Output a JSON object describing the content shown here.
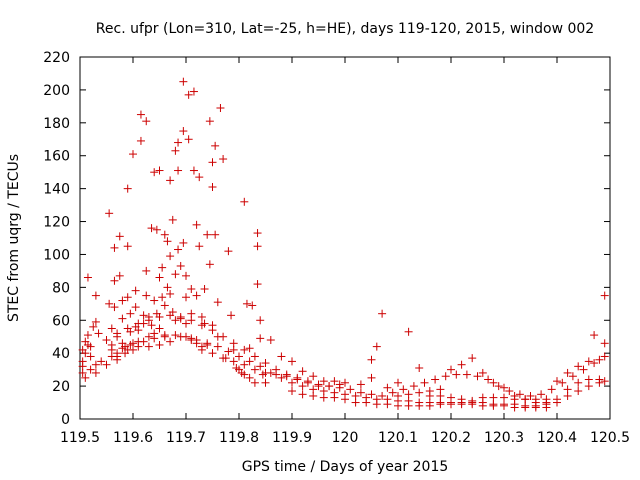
{
  "chart_data": {
    "type": "scatter",
    "title": "Rec. ufpr (Lon=310, Lat=-25, h=HE), days 119-120, 2015, window 002",
    "xlabel": "GPS time / Days of year 2015",
    "ylabel": "STEC from uqrg / TECUs",
    "xlim": [
      119.5,
      120.5
    ],
    "ylim": [
      0,
      220
    ],
    "x_ticks": [
      "119.5",
      "119.6",
      "119.7",
      "119.8",
      "119.9",
      "120",
      "120.1",
      "120.2",
      "120.3",
      "120.4",
      "120.5"
    ],
    "y_ticks": [
      "0",
      "20",
      "40",
      "60",
      "80",
      "100",
      "120",
      "140",
      "160",
      "180",
      "200",
      "220"
    ],
    "grid": false,
    "marker_color": "#cc0000",
    "marker": "plus",
    "points": [
      [
        119.505,
        42
      ],
      [
        119.505,
        35
      ],
      [
        119.505,
        28
      ],
      [
        119.51,
        40
      ],
      [
        119.51,
        47
      ],
      [
        119.515,
        86
      ],
      [
        119.515,
        45
      ],
      [
        119.515,
        51
      ],
      [
        119.52,
        30
      ],
      [
        119.52,
        38
      ],
      [
        119.525,
        56
      ],
      [
        119.53,
        75
      ],
      [
        119.53,
        33
      ],
      [
        119.53,
        59
      ],
      [
        119.535,
        52
      ],
      [
        119.555,
        125
      ],
      [
        119.555,
        70
      ],
      [
        119.56,
        55
      ],
      [
        119.56,
        45
      ],
      [
        119.56,
        38
      ],
      [
        119.565,
        104
      ],
      [
        119.565,
        84
      ],
      [
        119.565,
        68
      ],
      [
        119.57,
        52
      ],
      [
        119.57,
        40
      ],
      [
        119.57,
        36
      ],
      [
        119.575,
        111
      ],
      [
        119.575,
        87
      ],
      [
        119.58,
        72
      ],
      [
        119.58,
        61
      ],
      [
        119.58,
        46
      ],
      [
        119.585,
        44
      ],
      [
        119.585,
        40
      ],
      [
        119.59,
        140
      ],
      [
        119.59,
        105
      ],
      [
        119.59,
        74
      ],
      [
        119.595,
        64
      ],
      [
        119.595,
        53
      ],
      [
        119.595,
        45
      ],
      [
        119.6,
        161
      ],
      [
        119.6,
        42
      ],
      [
        119.605,
        78
      ],
      [
        119.605,
        68
      ],
      [
        119.605,
        56
      ],
      [
        119.61,
        54
      ],
      [
        119.61,
        47
      ],
      [
        119.615,
        185
      ],
      [
        119.615,
        169
      ],
      [
        119.62,
        63
      ],
      [
        119.62,
        58
      ],
      [
        119.625,
        181
      ],
      [
        119.625,
        90
      ],
      [
        119.625,
        75
      ],
      [
        119.63,
        62
      ],
      [
        119.63,
        50
      ],
      [
        119.635,
        116
      ],
      [
        119.635,
        57
      ],
      [
        119.64,
        150
      ],
      [
        119.64,
        72
      ],
      [
        119.64,
        52
      ],
      [
        119.645,
        115
      ],
      [
        119.645,
        64
      ],
      [
        119.65,
        151
      ],
      [
        119.65,
        86
      ],
      [
        119.65,
        55
      ],
      [
        119.655,
        92
      ],
      [
        119.655,
        74
      ],
      [
        119.66,
        112
      ],
      [
        119.66,
        69
      ],
      [
        119.66,
        51
      ],
      [
        119.665,
        108
      ],
      [
        119.665,
        80
      ],
      [
        119.67,
        145
      ],
      [
        119.67,
        99
      ],
      [
        119.67,
        76
      ],
      [
        119.675,
        121
      ],
      [
        119.675,
        65
      ],
      [
        119.68,
        163
      ],
      [
        119.68,
        88
      ],
      [
        119.68,
        60
      ],
      [
        119.685,
        168
      ],
      [
        119.685,
        151
      ],
      [
        119.685,
        103
      ],
      [
        119.69,
        93
      ],
      [
        119.69,
        61
      ],
      [
        119.695,
        205
      ],
      [
        119.695,
        175
      ],
      [
        119.695,
        107
      ],
      [
        119.7,
        87
      ],
      [
        119.7,
        74
      ],
      [
        119.7,
        58
      ],
      [
        119.705,
        197
      ],
      [
        119.705,
        170
      ],
      [
        119.71,
        79
      ],
      [
        119.71,
        64
      ],
      [
        119.71,
        49
      ],
      [
        119.715,
        199
      ],
      [
        119.715,
        151
      ],
      [
        119.72,
        118
      ],
      [
        119.72,
        75
      ],
      [
        119.72,
        46
      ],
      [
        119.725,
        147
      ],
      [
        119.725,
        105
      ],
      [
        119.73,
        62
      ],
      [
        119.73,
        42
      ],
      [
        119.735,
        79
      ],
      [
        119.735,
        58
      ],
      [
        119.74,
        112
      ],
      [
        119.74,
        45
      ],
      [
        119.745,
        181
      ],
      [
        119.745,
        94
      ],
      [
        119.75,
        156
      ],
      [
        119.75,
        141
      ],
      [
        119.75,
        57
      ],
      [
        119.755,
        166
      ],
      [
        119.755,
        112
      ],
      [
        119.76,
        71
      ],
      [
        119.76,
        50
      ],
      [
        119.765,
        189
      ],
      [
        119.77,
        158
      ],
      [
        119.775,
        37
      ],
      [
        119.78,
        102
      ],
      [
        119.785,
        63
      ],
      [
        119.79,
        42
      ],
      [
        119.795,
        31
      ],
      [
        119.8,
        30
      ],
      [
        119.805,
        28
      ],
      [
        119.81,
        132
      ],
      [
        119.81,
        27
      ],
      [
        119.815,
        70
      ],
      [
        119.82,
        43
      ],
      [
        119.82,
        25
      ],
      [
        119.825,
        69
      ],
      [
        119.83,
        22
      ],
      [
        119.835,
        113
      ],
      [
        119.835,
        105
      ],
      [
        119.835,
        82
      ],
      [
        119.84,
        60
      ],
      [
        119.84,
        49
      ],
      [
        119.845,
        27
      ],
      [
        119.85,
        22
      ],
      [
        119.505,
        32
      ],
      [
        119.52,
        44
      ],
      [
        119.54,
        35
      ],
      [
        119.56,
        42
      ],
      [
        119.58,
        43
      ],
      [
        119.6,
        46
      ],
      [
        119.62,
        47
      ],
      [
        119.64,
        49
      ],
      [
        119.66,
        50
      ],
      [
        119.68,
        51
      ],
      [
        119.7,
        50
      ],
      [
        119.72,
        48
      ],
      [
        119.74,
        46
      ],
      [
        119.76,
        44
      ],
      [
        119.78,
        41
      ],
      [
        119.8,
        38
      ],
      [
        119.82,
        35
      ],
      [
        119.84,
        32
      ],
      [
        119.86,
        28
      ],
      [
        119.88,
        25
      ],
      [
        119.9,
        22
      ],
      [
        119.92,
        20
      ],
      [
        119.94,
        18
      ],
      [
        119.96,
        17
      ],
      [
        119.98,
        16
      ],
      [
        120.0,
        15
      ],
      [
        120.02,
        14
      ],
      [
        120.04,
        13
      ],
      [
        120.06,
        12
      ],
      [
        120.08,
        12
      ],
      [
        120.1,
        11
      ],
      [
        120.12,
        11
      ],
      [
        120.14,
        10
      ],
      [
        120.16,
        10
      ],
      [
        120.18,
        10
      ],
      [
        120.2,
        10
      ],
      [
        120.22,
        10
      ],
      [
        120.24,
        10
      ],
      [
        120.26,
        10
      ],
      [
        120.28,
        9
      ],
      [
        120.3,
        9
      ],
      [
        120.32,
        9
      ],
      [
        120.34,
        8
      ],
      [
        120.36,
        8
      ],
      [
        120.38,
        9
      ],
      [
        120.4,
        12
      ],
      [
        120.42,
        18
      ],
      [
        120.44,
        22
      ],
      [
        120.46,
        24
      ],
      [
        120.48,
        24
      ],
      [
        120.49,
        23
      ],
      [
        119.55,
        48
      ],
      [
        119.57,
        50
      ],
      [
        119.59,
        55
      ],
      [
        119.61,
        58
      ],
      [
        119.63,
        60
      ],
      [
        119.65,
        62
      ],
      [
        119.67,
        63
      ],
      [
        119.69,
        62
      ],
      [
        119.71,
        60
      ],
      [
        119.73,
        57
      ],
      [
        119.75,
        54
      ],
      [
        119.77,
        50
      ],
      [
        119.79,
        46
      ],
      [
        119.81,
        42
      ],
      [
        119.83,
        38
      ],
      [
        119.85,
        34
      ],
      [
        119.87,
        30
      ],
      [
        119.89,
        27
      ],
      [
        119.91,
        25
      ],
      [
        119.93,
        23
      ],
      [
        119.95,
        21
      ],
      [
        119.97,
        20
      ],
      [
        119.99,
        19
      ],
      [
        120.01,
        18
      ],
      [
        120.03,
        16
      ],
      [
        120.05,
        15
      ],
      [
        120.07,
        14
      ],
      [
        120.09,
        16
      ],
      [
        120.11,
        18
      ],
      [
        120.13,
        20
      ],
      [
        120.15,
        22
      ],
      [
        120.17,
        24
      ],
      [
        120.19,
        26
      ],
      [
        120.21,
        27
      ],
      [
        120.23,
        27
      ],
      [
        120.25,
        26
      ],
      [
        120.27,
        24
      ],
      [
        120.29,
        20
      ],
      [
        120.31,
        17
      ],
      [
        120.33,
        15
      ],
      [
        120.35,
        14
      ],
      [
        120.37,
        15
      ],
      [
        120.39,
        18
      ],
      [
        120.41,
        22
      ],
      [
        120.43,
        26
      ],
      [
        120.45,
        30
      ],
      [
        120.47,
        34
      ],
      [
        120.49,
        38
      ],
      [
        119.51,
        25
      ],
      [
        119.53,
        28
      ],
      [
        119.55,
        33
      ],
      [
        119.57,
        38
      ],
      [
        119.59,
        42
      ],
      [
        119.61,
        44
      ],
      [
        119.63,
        44
      ],
      [
        119.65,
        45
      ],
      [
        119.67,
        47
      ],
      [
        119.69,
        50
      ],
      [
        119.71,
        48
      ],
      [
        119.73,
        44
      ],
      [
        119.75,
        40
      ],
      [
        119.77,
        37
      ],
      [
        119.79,
        35
      ],
      [
        119.81,
        33
      ],
      [
        119.83,
        30
      ],
      [
        119.85,
        28
      ],
      [
        119.87,
        27
      ],
      [
        119.89,
        26
      ],
      [
        119.91,
        24
      ],
      [
        119.93,
        22
      ],
      [
        119.95,
        20
      ],
      [
        119.97,
        20
      ],
      [
        119.99,
        21
      ],
      [
        119.86,
        48
      ],
      [
        119.88,
        38
      ],
      [
        119.9,
        35
      ],
      [
        119.92,
        29
      ],
      [
        119.94,
        26
      ],
      [
        119.96,
        23
      ],
      [
        119.98,
        23
      ],
      [
        120.0,
        22
      ],
      [
        119.9,
        17
      ],
      [
        119.92,
        15
      ],
      [
        119.94,
        14
      ],
      [
        119.96,
        13
      ],
      [
        119.98,
        13
      ],
      [
        120.0,
        12
      ],
      [
        120.03,
        21
      ],
      [
        120.05,
        25
      ],
      [
        120.07,
        64
      ],
      [
        120.05,
        36
      ],
      [
        120.06,
        44
      ],
      [
        120.08,
        19
      ],
      [
        120.1,
        22
      ],
      [
        120.12,
        53
      ],
      [
        120.14,
        31
      ],
      [
        120.16,
        17
      ],
      [
        120.18,
        18
      ],
      [
        120.2,
        30
      ],
      [
        120.22,
        33
      ],
      [
        120.24,
        37
      ],
      [
        120.26,
        28
      ],
      [
        120.28,
        22
      ],
      [
        120.3,
        19
      ],
      [
        120.32,
        14
      ],
      [
        120.34,
        12
      ],
      [
        120.36,
        10
      ],
      [
        120.38,
        12
      ],
      [
        120.4,
        23
      ],
      [
        120.42,
        28
      ],
      [
        120.44,
        32
      ],
      [
        120.46,
        35
      ],
      [
        120.48,
        36
      ],
      [
        120.49,
        75
      ],
      [
        120.47,
        51
      ],
      [
        120.49,
        46
      ],
      [
        120.02,
        10
      ],
      [
        120.04,
        10
      ],
      [
        120.06,
        9
      ],
      [
        120.08,
        9
      ],
      [
        120.1,
        8
      ],
      [
        120.12,
        8
      ],
      [
        120.14,
        8
      ],
      [
        120.16,
        8
      ],
      [
        120.18,
        9
      ],
      [
        120.2,
        9
      ],
      [
        120.22,
        9
      ],
      [
        120.24,
        9
      ],
      [
        120.26,
        8
      ],
      [
        120.28,
        8
      ],
      [
        120.3,
        8
      ],
      [
        120.32,
        7
      ],
      [
        120.34,
        7
      ],
      [
        120.36,
        7
      ],
      [
        120.38,
        7
      ],
      [
        120.26,
        13
      ],
      [
        120.28,
        13
      ],
      [
        120.3,
        13
      ],
      [
        120.32,
        12
      ],
      [
        120.34,
        12
      ],
      [
        120.36,
        12
      ],
      [
        120.38,
        10
      ],
      [
        120.4,
        10
      ],
      [
        120.42,
        14
      ],
      [
        120.44,
        17
      ],
      [
        120.46,
        20
      ],
      [
        120.48,
        22
      ],
      [
        120.1,
        14
      ],
      [
        120.12,
        15
      ],
      [
        120.14,
        16
      ],
      [
        120.16,
        14
      ],
      [
        120.18,
        14
      ],
      [
        120.2,
        13
      ],
      [
        120.22,
        12
      ],
      [
        120.24,
        11
      ]
    ]
  }
}
